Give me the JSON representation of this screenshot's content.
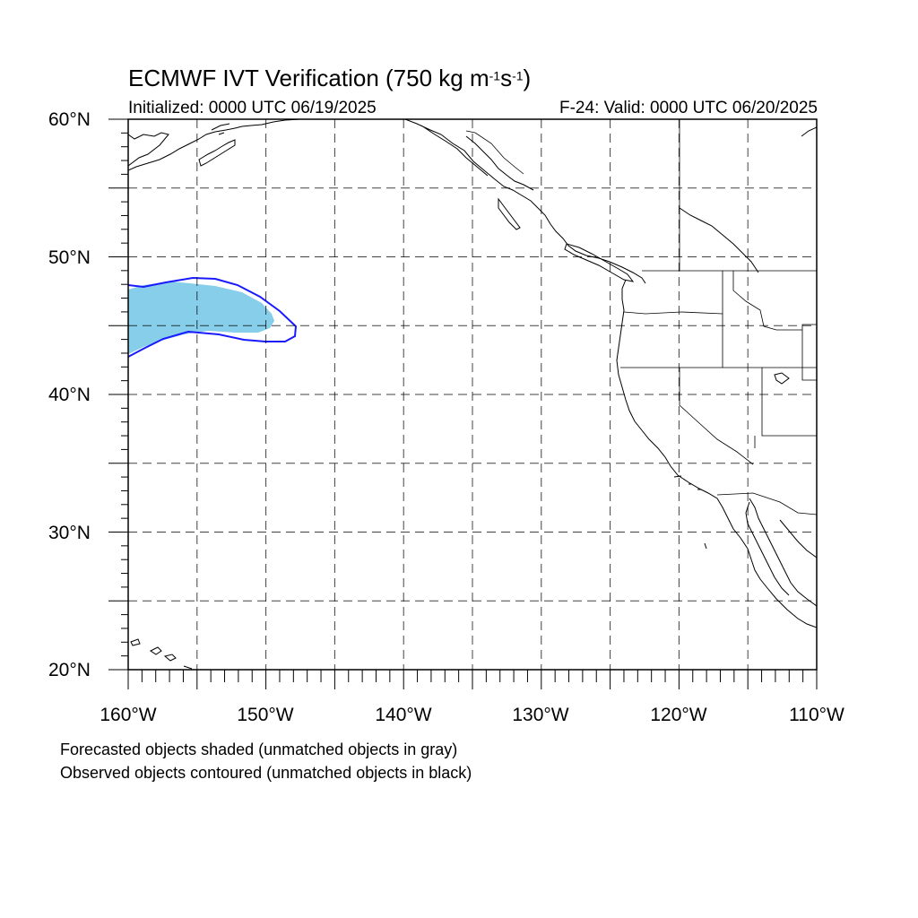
{
  "title": "ECMWF IVT Verification (750 kg m",
  "title_exp1": "-1",
  "title_mid": "s",
  "title_exp2": "-1",
  "title_end": ")",
  "initialized": "Initialized: 0000 UTC 06/19/2025",
  "valid": "F-24: Valid: 0000 UTC 06/20/2025",
  "lat_labels": [
    "60°N",
    "50°N",
    "40°N",
    "30°N",
    "20°N"
  ],
  "lon_labels": [
    "160°W",
    "150°W",
    "140°W",
    "130°W",
    "120°W",
    "110°W"
  ],
  "note1": "Forecasted objects shaded (unmatched objects in gray)",
  "note2": "Observed objects contoured (unmatched objects in black)",
  "colors": {
    "forecast_fill": "#87ceeb",
    "observed_contour": "#1a1aff",
    "grid": "#000000"
  },
  "map": {
    "lon_range": [
      -160,
      -110
    ],
    "lat_range": [
      20,
      60
    ],
    "grid_step_deg": 5
  }
}
